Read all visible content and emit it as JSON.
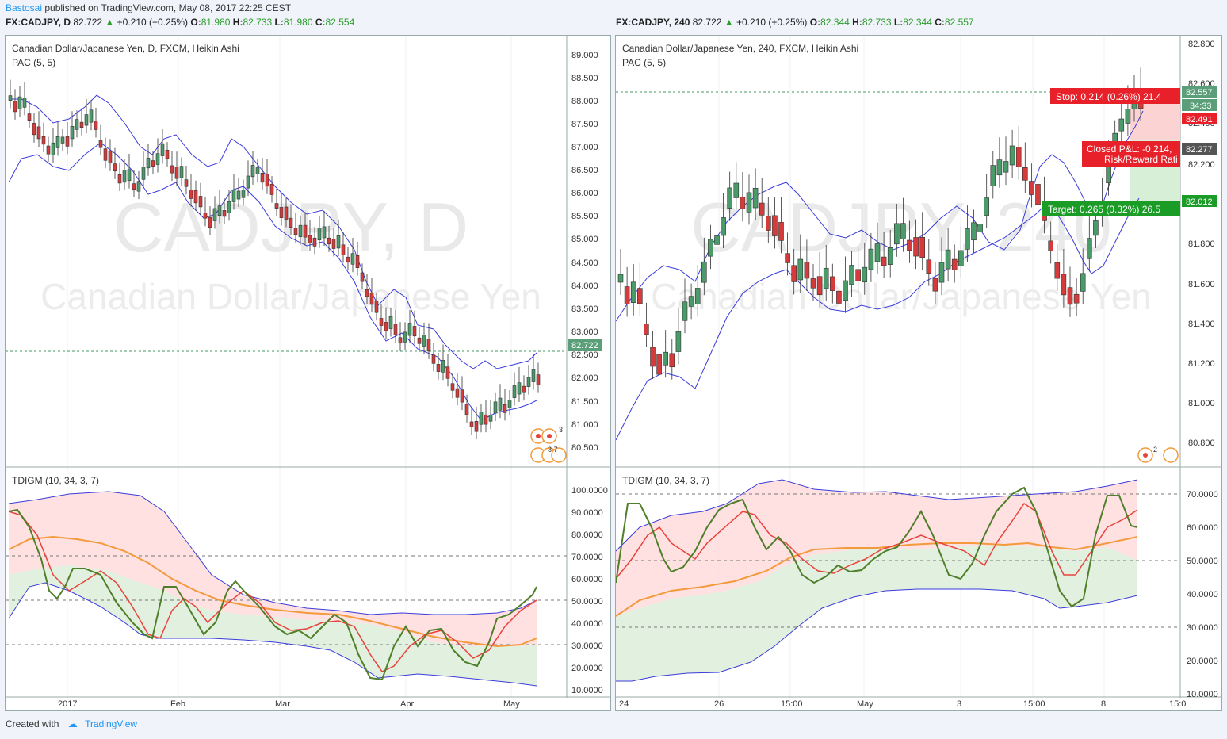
{
  "header": {
    "author": "Bastosai",
    "published": "published on TradingView.com, May 08, 2017 22:25 CEST"
  },
  "left": {
    "symbol": "FX:CADJPY, D",
    "last": "82.722",
    "change": "+0.210 (+0.25%)",
    "o_label": "O:",
    "o": "81.980",
    "h_label": "H:",
    "h": "82.733",
    "l_label": "L:",
    "l": "81.980",
    "c_label": "C:",
    "c": "82.554",
    "legend": "Canadian Dollar/Japanese Yen, D, FXCM, Heikin Ashi",
    "indicator": "PAC (5, 5)",
    "watermark1": "CADJPY, D",
    "watermark2": "Canadian Dollar/Japanese Yen",
    "price_axis": [
      "89.000",
      "88.500",
      "88.000",
      "87.500",
      "87.000",
      "86.500",
      "86.000",
      "85.500",
      "85.000",
      "84.500",
      "84.000",
      "83.500",
      "83.000",
      "82.500",
      "82.000",
      "81.500",
      "81.000",
      "80.500"
    ],
    "last_price_tag": "82.722",
    "osc_label": "TDIGM (10, 34, 3, 7)",
    "osc_axis": [
      "100.0000",
      "90.0000",
      "80.0000",
      "70.0000",
      "60.0000",
      "50.0000",
      "40.0000",
      "30.0000",
      "20.0000",
      "10.0000"
    ],
    "time_axis": [
      "2017",
      "Feb",
      "Mar",
      "Apr",
      "May"
    ],
    "event_badge_1": "3",
    "event_badge_2": "3 7"
  },
  "right": {
    "symbol": "FX:CADJPY, 240",
    "last": "82.722",
    "change": "+0.210 (+0.25%)",
    "o_label": "O:",
    "o": "82.344",
    "h_label": "H:",
    "h": "82.733",
    "l_label": "L:",
    "l": "82.344",
    "c_label": "C:",
    "c": "82.557",
    "legend": "Canadian Dollar/Japanese Yen, 240, FXCM, Heikin Ashi",
    "indicator": "PAC (5, 5)",
    "watermark1": "CADJPY, 240",
    "watermark2": "Canadian Dollar/Japanese Yen",
    "price_axis": [
      "82.800",
      "82.600",
      "82.400",
      "82.200",
      "82.000",
      "81.800",
      "81.600",
      "81.400",
      "81.200",
      "81.000",
      "80.800"
    ],
    "tag_price": "82.557",
    "tag_countdown": "34:33",
    "tag_stop": "82.491",
    "tag_entry": "82.277",
    "tag_target": "82.012",
    "stop_text": "Stop: 0.214 (0.26%) 21.4",
    "pnl_text": "Closed P&L: -0.214,",
    "rr_text": "Risk/Reward Rati",
    "target_text": "Target: 0.265 (0.32%) 26.5",
    "osc_label": "TDIGM (10, 34, 3, 7)",
    "osc_axis": [
      "70.0000",
      "60.0000",
      "50.0000",
      "40.0000",
      "30.0000",
      "20.0000",
      "10.0000"
    ],
    "time_axis": [
      "24",
      "26",
      "15:00",
      "May",
      "3",
      "15:00",
      "8",
      "15:0"
    ],
    "event_badge": "2"
  },
  "footer": {
    "created": "Created with",
    "brand": "TradingView"
  },
  "colors": {
    "up": "#4a9a6a",
    "down": "#d63b3b",
    "pac": "#3b3bdb",
    "tdi_green": "#4f7f2a",
    "tdi_red": "#e8423c",
    "tdi_orange": "#f29a3c"
  }
}
